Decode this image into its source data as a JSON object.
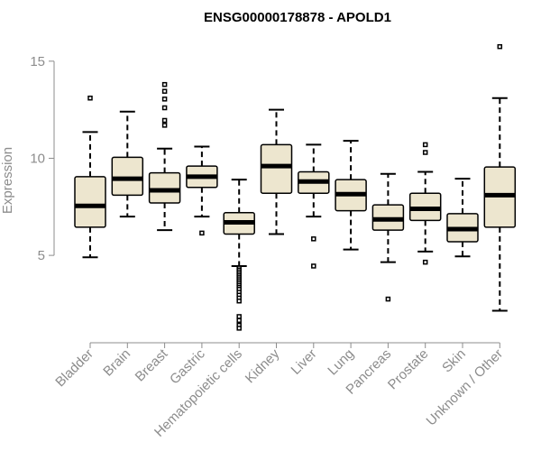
{
  "chart_data": {
    "type": "boxplot",
    "title": "ENSG00000178878 - APOLD1",
    "xlabel": "",
    "ylabel": "Expression",
    "ylim": [
      0.5,
      16.2
    ],
    "yticks": [
      5,
      10,
      15
    ],
    "colors": {
      "box_fill": "#ede6cf",
      "box_stroke": "#000000",
      "axis": "#8c8c8c",
      "text": "#8c8c8c"
    },
    "categories": [
      "Bladder",
      "Brain",
      "Breast",
      "Gastric",
      "Hematopoietic cells",
      "Kidney",
      "Liver",
      "Lung",
      "Pancreas",
      "Prostate",
      "Skin",
      "Unknown / Other"
    ],
    "boxes": [
      {
        "name": "Bladder",
        "min": 4.9,
        "q1": 6.45,
        "median": 7.55,
        "q3": 9.05,
        "max": 11.35,
        "outliers": [
          13.1
        ]
      },
      {
        "name": "Brain",
        "min": 7.0,
        "q1": 8.1,
        "median": 8.95,
        "q3": 10.05,
        "max": 12.4,
        "outliers": []
      },
      {
        "name": "Breast",
        "min": 6.3,
        "q1": 7.7,
        "median": 8.35,
        "q3": 9.25,
        "max": 10.5,
        "outliers": [
          13.8,
          13.45,
          13.05,
          12.6,
          11.95,
          11.7
        ]
      },
      {
        "name": "Gastric",
        "min": 7.0,
        "q1": 8.5,
        "median": 9.05,
        "q3": 9.6,
        "max": 10.6,
        "outliers": [
          6.15
        ]
      },
      {
        "name": "Hematopoietic cells",
        "min": 4.45,
        "q1": 6.1,
        "median": 6.7,
        "q3": 7.2,
        "max": 8.9,
        "outliers": [
          4.35,
          4.25,
          4.15,
          4.05,
          3.95,
          3.85,
          3.75,
          3.65,
          3.55,
          3.45,
          3.35,
          3.25,
          3.1,
          2.95,
          2.8,
          2.65,
          1.85,
          1.65,
          1.4,
          1.25
        ]
      },
      {
        "name": "Kidney",
        "min": 6.1,
        "q1": 8.2,
        "median": 9.6,
        "q3": 10.7,
        "max": 12.5,
        "outliers": []
      },
      {
        "name": "Liver",
        "min": 7.0,
        "q1": 8.2,
        "median": 8.8,
        "q3": 9.3,
        "max": 10.7,
        "outliers": [
          5.85,
          4.45
        ]
      },
      {
        "name": "Lung",
        "min": 5.3,
        "q1": 7.3,
        "median": 8.15,
        "q3": 8.9,
        "max": 10.9,
        "outliers": []
      },
      {
        "name": "Pancreas",
        "min": 4.65,
        "q1": 6.3,
        "median": 6.85,
        "q3": 7.6,
        "max": 9.2,
        "outliers": [
          2.75
        ]
      },
      {
        "name": "Prostate",
        "min": 5.2,
        "q1": 6.8,
        "median": 7.4,
        "q3": 8.2,
        "max": 9.3,
        "outliers": [
          10.7,
          10.3,
          4.65
        ]
      },
      {
        "name": "Skin",
        "min": 4.95,
        "q1": 5.7,
        "median": 6.35,
        "q3": 7.15,
        "max": 8.95,
        "outliers": []
      },
      {
        "name": "Unknown / Other",
        "min": 2.15,
        "q1": 6.45,
        "median": 8.1,
        "q3": 9.55,
        "max": 13.1,
        "outliers": [
          15.75
        ]
      }
    ]
  }
}
